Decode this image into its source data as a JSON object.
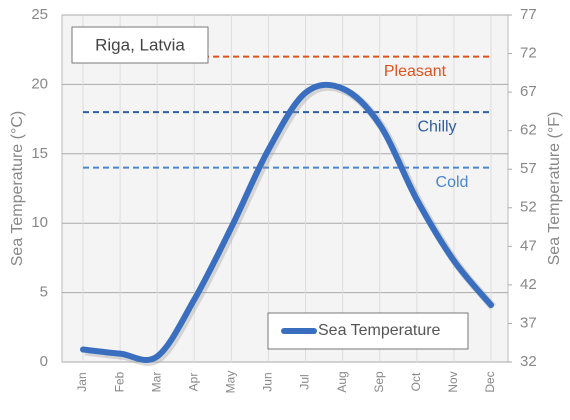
{
  "chart_data": {
    "type": "line",
    "title": "Riga, Latvia",
    "y_label": "Sea Temperature (°C)",
    "y2_label": "Sea Temperature (°F)",
    "categories": [
      "Jan",
      "Feb",
      "Mar",
      "Apr",
      "May",
      "Jun",
      "Jul",
      "Aug",
      "Sep",
      "Oct",
      "Nov",
      "Dec"
    ],
    "series": [
      {
        "name": "Sea Temperature",
        "color": "#3a6fc0",
        "values": [
          0.9,
          0.6,
          0.4,
          4.5,
          9.7,
          15.3,
          19.4,
          19.7,
          17.1,
          11.7,
          7.3,
          4.1
        ]
      }
    ],
    "thresholds": [
      {
        "name": "Pleasant",
        "value": 22,
        "color": "#e0521c"
      },
      {
        "name": "Chilly",
        "value": 18,
        "color": "#2d5ea8"
      },
      {
        "name": "Cold",
        "value": 14,
        "color": "#4a86cf"
      }
    ],
    "ylim": [
      0,
      25
    ],
    "yticks": [
      0,
      5,
      10,
      15,
      20,
      25
    ],
    "y2lim": [
      32,
      77
    ],
    "y2ticks": [
      32,
      37,
      42,
      47,
      52,
      57,
      62,
      67,
      72,
      77
    ],
    "grid": true,
    "legend": "bottom-right"
  }
}
